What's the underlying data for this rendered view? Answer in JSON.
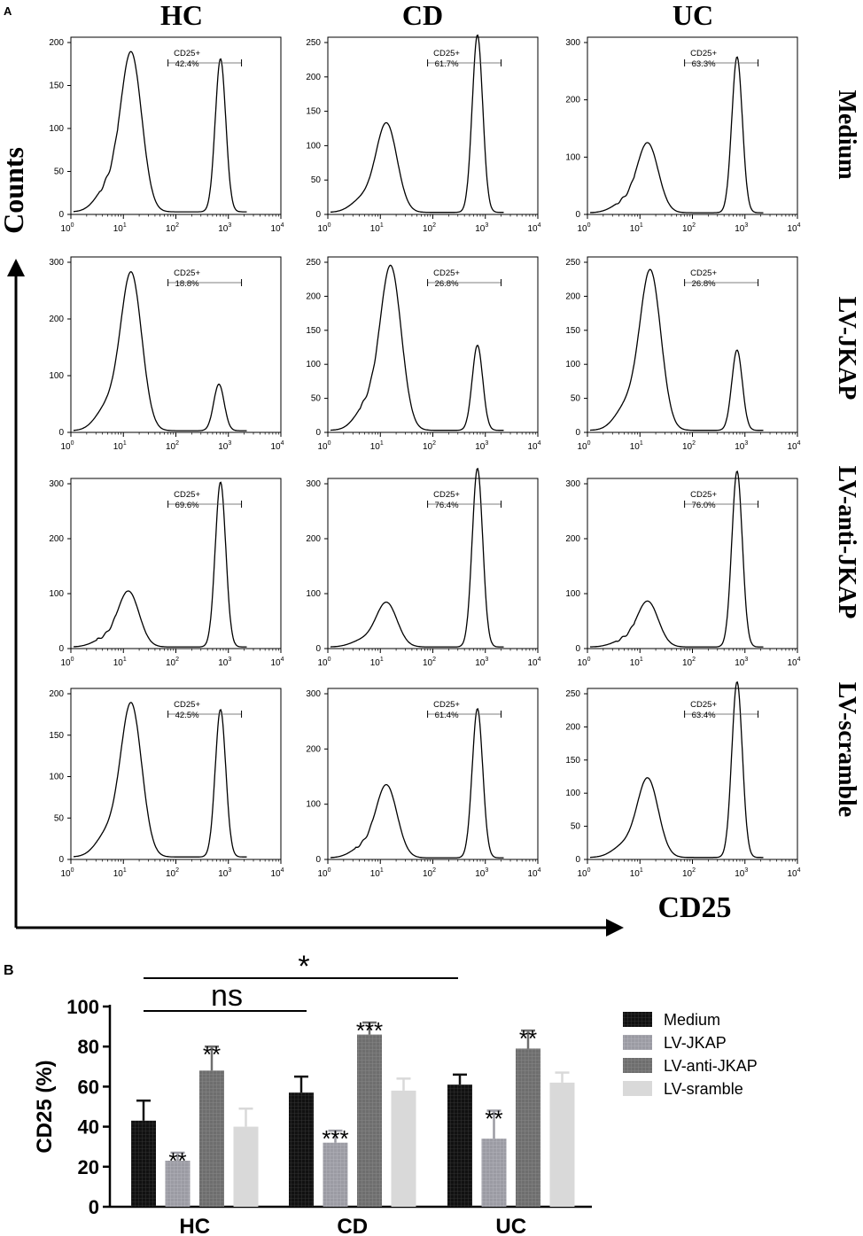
{
  "panel_a": {
    "label": "A",
    "column_titles": [
      "HC",
      "CD",
      "UC"
    ],
    "row_titles": [
      "Medium",
      "LV-JKAP",
      "LV-anti-JKAP",
      "LV-scramble"
    ],
    "y_axis_label": "Counts",
    "x_axis_label": "CD25",
    "gate_label": "CD25+",
    "x_tick_labels": [
      "10",
      "10",
      "10",
      "10",
      "10"
    ],
    "x_tick_exponents": [
      "0",
      "1",
      "2",
      "3",
      "4"
    ]
  },
  "panel_b": {
    "label": "B",
    "significance_star": "*",
    "significance_ns": "ns"
  },
  "chart_data": [
    {
      "type": "histogram_grid",
      "title": "CD25 flow cytometry histograms",
      "xlabel": "CD25",
      "ylabel": "Counts",
      "x_scale": "log",
      "x_range": [
        1,
        10000
      ],
      "columns": [
        "HC",
        "CD",
        "UC"
      ],
      "rows": [
        "Medium",
        "LV-JKAP",
        "LV-anti-JKAP",
        "LV-scramble"
      ],
      "panels": [
        {
          "row": "Medium",
          "col": "HC",
          "gate_percent": "42.4%",
          "ymax": 200,
          "yticks": [
            0,
            50,
            100,
            150,
            200
          ],
          "neg_peak": {
            "log_x": 1.15,
            "height": 183
          },
          "pos_peak": {
            "log_x": 2.85,
            "height": 178
          }
        },
        {
          "row": "Medium",
          "col": "CD",
          "gate_percent": "61.7%",
          "ymax": 250,
          "yticks": [
            0,
            50,
            100,
            150,
            200,
            250
          ],
          "neg_peak": {
            "log_x": 1.12,
            "height": 128
          },
          "pos_peak": {
            "log_x": 2.85,
            "height": 258
          }
        },
        {
          "row": "Medium",
          "col": "UC",
          "gate_percent": "63.3%",
          "ymax": 300,
          "yticks": [
            0,
            100,
            200,
            300
          ],
          "neg_peak": {
            "log_x": 1.15,
            "height": 120
          },
          "pos_peak": {
            "log_x": 2.85,
            "height": 272
          }
        },
        {
          "row": "LV-JKAP",
          "col": "HC",
          "gate_percent": "18.8%",
          "ymax": 300,
          "yticks": [
            0,
            100,
            200,
            300
          ],
          "neg_peak": {
            "log_x": 1.15,
            "height": 275
          },
          "pos_peak": {
            "log_x": 2.82,
            "height": 82
          }
        },
        {
          "row": "LV-JKAP",
          "col": "CD",
          "gate_percent": "26.8%",
          "ymax": 250,
          "yticks": [
            0,
            50,
            100,
            150,
            200,
            250
          ],
          "neg_peak": {
            "log_x": 1.2,
            "height": 238
          },
          "pos_peak": {
            "log_x": 2.85,
            "height": 125
          }
        },
        {
          "row": "LV-JKAP",
          "col": "UC",
          "gate_percent": "26.8%",
          "ymax": 250,
          "yticks": [
            0,
            50,
            100,
            150,
            200,
            250
          ],
          "neg_peak": {
            "log_x": 1.2,
            "height": 232
          },
          "pos_peak": {
            "log_x": 2.85,
            "height": 118
          }
        },
        {
          "row": "LV-anti-JKAP",
          "col": "HC",
          "gate_percent": "69.6%",
          "ymax": 300,
          "yticks": [
            0,
            100,
            200,
            300
          ],
          "neg_peak": {
            "log_x": 1.1,
            "height": 100
          },
          "pos_peak": {
            "log_x": 2.85,
            "height": 300
          }
        },
        {
          "row": "LV-anti-JKAP",
          "col": "CD",
          "gate_percent": "76.4%",
          "ymax": 300,
          "yticks": [
            0,
            100,
            200,
            300
          ],
          "neg_peak": {
            "log_x": 1.12,
            "height": 80
          },
          "pos_peak": {
            "log_x": 2.85,
            "height": 325
          }
        },
        {
          "row": "LV-anti-JKAP",
          "col": "UC",
          "gate_percent": "76.0%",
          "ymax": 300,
          "yticks": [
            0,
            100,
            200,
            300
          ],
          "neg_peak": {
            "log_x": 1.15,
            "height": 82
          },
          "pos_peak": {
            "log_x": 2.85,
            "height": 320
          }
        },
        {
          "row": "LV-scramble",
          "col": "HC",
          "gate_percent": "42.5%",
          "ymax": 200,
          "yticks": [
            0,
            50,
            100,
            150,
            200
          ],
          "neg_peak": {
            "log_x": 1.15,
            "height": 183
          },
          "pos_peak": {
            "log_x": 2.85,
            "height": 178
          }
        },
        {
          "row": "LV-scramble",
          "col": "CD",
          "gate_percent": "61.4%",
          "ymax": 300,
          "yticks": [
            0,
            100,
            200,
            300
          ],
          "neg_peak": {
            "log_x": 1.12,
            "height": 130
          },
          "pos_peak": {
            "log_x": 2.85,
            "height": 270
          }
        },
        {
          "row": "LV-scramble",
          "col": "UC",
          "gate_percent": "63.4%",
          "ymax": 250,
          "yticks": [
            0,
            50,
            100,
            150,
            200,
            250
          ],
          "neg_peak": {
            "log_x": 1.15,
            "height": 118
          },
          "pos_peak": {
            "log_x": 2.85,
            "height": 265
          }
        }
      ]
    },
    {
      "type": "bar",
      "title": "",
      "xlabel": "",
      "ylabel": "CD25 (%)",
      "ylim": [
        0,
        100
      ],
      "yticks": [
        0,
        20,
        40,
        60,
        80,
        100
      ],
      "categories": [
        "HC",
        "CD",
        "UC"
      ],
      "series": [
        {
          "name": "Medium",
          "color": "#111111",
          "pattern": "grid",
          "values": [
            43,
            57,
            61
          ],
          "errors": [
            10,
            8,
            5
          ],
          "labels": [
            "",
            "",
            ""
          ]
        },
        {
          "name": "LV-JKAP",
          "color": "#9b9ba3",
          "pattern": "grid",
          "values": [
            23,
            32,
            34
          ],
          "errors": [
            4,
            6,
            14
          ],
          "labels": [
            "**",
            "***",
            "**"
          ]
        },
        {
          "name": "LV-anti-JKAP",
          "color": "#6e6e6e",
          "pattern": "grid",
          "values": [
            68,
            86,
            79
          ],
          "errors": [
            12,
            6,
            9
          ],
          "labels": [
            "**",
            "***",
            "**"
          ]
        },
        {
          "name": "LV-sramble",
          "color": "#d9d9d9",
          "pattern": "none",
          "values": [
            40,
            58,
            62
          ],
          "errors": [
            9,
            6,
            5
          ],
          "labels": [
            "",
            "",
            ""
          ]
        }
      ],
      "legend": "right"
    }
  ]
}
